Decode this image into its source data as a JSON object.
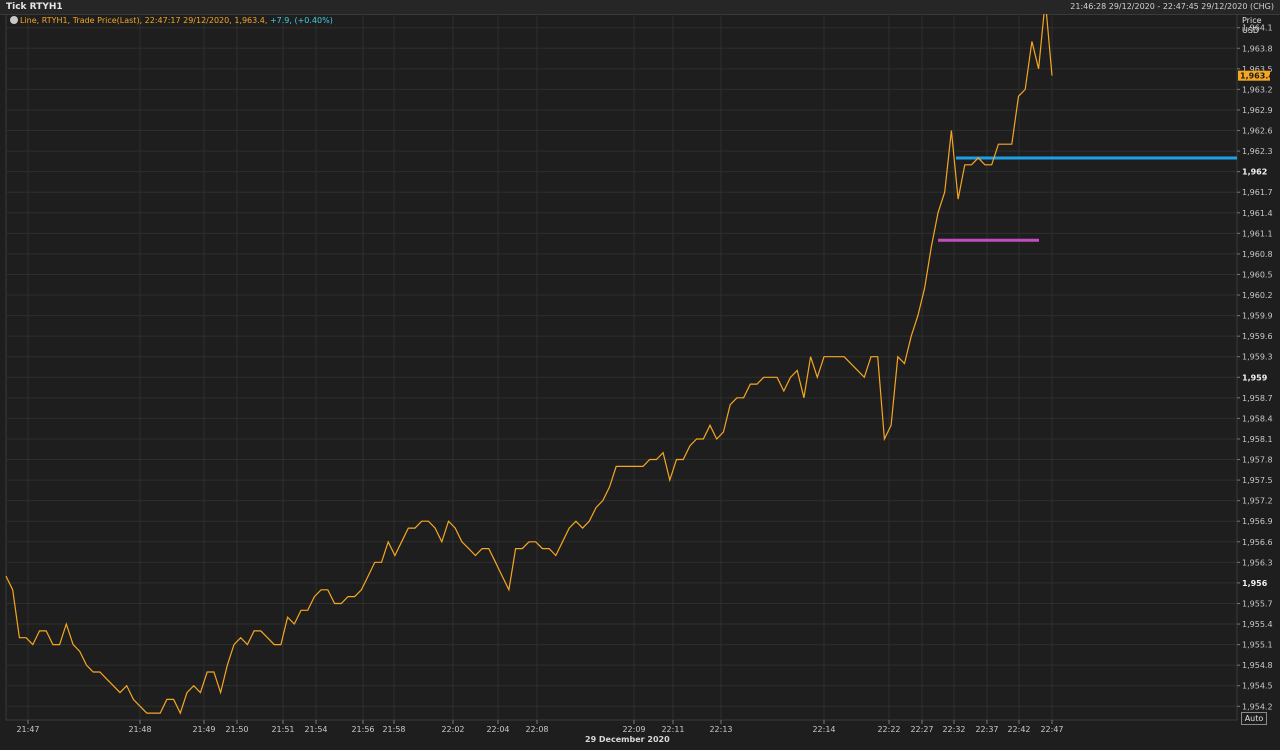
{
  "window": {
    "title": "Tick RTYH1",
    "range": "21:46:28 29/12/2020 - 22:47:45 29/12/2020 (CHG)"
  },
  "legend": {
    "icon": "clock-icon",
    "series_text": "Line, RTYH1, Trade Price(Last),  22:47:17 29/12/2020, 1,963.4,",
    "change_text": "+7.9,  (+0.40%)"
  },
  "axis": {
    "price_label": "Price",
    "currency_label": "USD",
    "current_price": "1,963.4",
    "auto_label": "Auto",
    "date_label": "29 December 2020"
  },
  "colors": {
    "background": "#1e1e1e",
    "line": "#f5a623",
    "hline_blue": "#1ea0e6",
    "hline_purple": "#c04ec0",
    "change_text": "#3fd0e0"
  },
  "chart_data": {
    "type": "line",
    "series": [
      {
        "name": "RTYH1",
        "values": [
          1956.1,
          1955.9,
          1955.2,
          1955.2,
          1955.1,
          1955.3,
          1955.3,
          1955.1,
          1955.1,
          1955.4,
          1955.1,
          1955.0,
          1954.8,
          1954.7,
          1954.7,
          1954.6,
          1954.5,
          1954.4,
          1954.5,
          1954.3,
          1954.2,
          1954.1,
          1954.1,
          1954.1,
          1954.3,
          1954.3,
          1954.1,
          1954.4,
          1954.5,
          1954.4,
          1954.7,
          1954.7,
          1954.4,
          1954.8,
          1955.1,
          1955.2,
          1955.1,
          1955.3,
          1955.3,
          1955.2,
          1955.1,
          1955.1,
          1955.5,
          1955.4,
          1955.6,
          1955.6,
          1955.8,
          1955.9,
          1955.9,
          1955.7,
          1955.7,
          1955.8,
          1955.8,
          1955.9,
          1956.1,
          1956.3,
          1956.3,
          1956.6,
          1956.4,
          1956.6,
          1956.8,
          1956.8,
          1956.9,
          1956.9,
          1956.8,
          1956.6,
          1956.9,
          1956.8,
          1956.6,
          1956.5,
          1956.4,
          1956.5,
          1956.5,
          1956.3,
          1956.1,
          1955.9,
          1956.5,
          1956.5,
          1956.6,
          1956.6,
          1956.5,
          1956.5,
          1956.4,
          1956.6,
          1956.8,
          1956.9,
          1956.8,
          1956.9,
          1957.1,
          1957.2,
          1957.4,
          1957.7,
          1957.7,
          1957.7,
          1957.7,
          1957.7,
          1957.8,
          1957.8,
          1957.9,
          1957.5,
          1957.8,
          1957.8,
          1958.0,
          1958.1,
          1958.1,
          1958.3,
          1958.1,
          1958.2,
          1958.6,
          1958.7,
          1958.7,
          1958.9,
          1958.9,
          1959.0,
          1959.0,
          1959.0,
          1958.8,
          1959.0,
          1959.1,
          1958.7,
          1959.3,
          1959.0,
          1959.3,
          1959.3,
          1959.3,
          1959.3,
          1959.2,
          1959.1,
          1959.0,
          1959.3,
          1959.3,
          1958.1,
          1958.3,
          1959.3,
          1959.2,
          1959.6,
          1959.9,
          1960.3,
          1960.9,
          1961.4,
          1961.7,
          1962.6,
          1961.6,
          1962.1,
          1962.1,
          1962.2,
          1962.1,
          1962.1,
          1962.4,
          1962.4,
          1962.4,
          1963.1,
          1963.2,
          1963.9,
          1963.5,
          1964.5,
          1963.4
        ],
        "approx_times": [
          "21:46:28",
          "22:47:17"
        ]
      }
    ],
    "x_ticks": [
      "21:47",
      "21:48",
      "21:49",
      "21:50",
      "21:51",
      "21:54",
      "21:56",
      "21:58",
      "22:02",
      "22:04",
      "22:08",
      "22:09",
      "22:11",
      "22:13",
      "22:14",
      "22:22",
      "22:27",
      "22:32",
      "22:37",
      "22:42",
      "22:47"
    ],
    "y_ticks": [
      "1,964.1",
      "1,963.8",
      "1,963.5",
      "1,963.2",
      "1,962.9",
      "1,962.6",
      "1,962.3",
      "1,962",
      "1,961.7",
      "1,961.4",
      "1,961.1",
      "1,960.8",
      "1,960.5",
      "1,960.2",
      "1,959.9",
      "1,959.6",
      "1,959.3",
      "1,959",
      "1,958.7",
      "1,958.4",
      "1,958.1",
      "1,957.8",
      "1,957.5",
      "1,957.2",
      "1,956.9",
      "1,956.6",
      "1,956.3",
      "1,956",
      "1,955.7",
      "1,955.4",
      "1,955.1",
      "1,954.8",
      "1,954.5",
      "1,954.2"
    ],
    "ylim": [
      1954.0,
      1964.3
    ],
    "grid": true,
    "hlines": [
      {
        "value": 1962.2,
        "color": "blue",
        "start_time": "22:32"
      },
      {
        "value": 1961.0,
        "color": "purple",
        "start_time": "22:27",
        "end_time": "22:42"
      }
    ]
  }
}
